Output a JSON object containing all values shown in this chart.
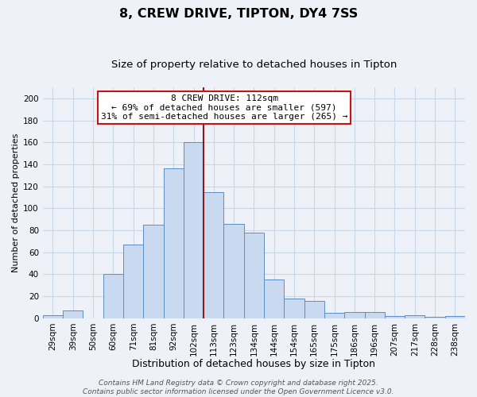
{
  "title": "8, CREW DRIVE, TIPTON, DY4 7SS",
  "subtitle": "Size of property relative to detached houses in Tipton",
  "xlabel": "Distribution of detached houses by size in Tipton",
  "ylabel": "Number of detached properties",
  "categories": [
    "29sqm",
    "39sqm",
    "50sqm",
    "60sqm",
    "71sqm",
    "81sqm",
    "92sqm",
    "102sqm",
    "113sqm",
    "123sqm",
    "134sqm",
    "144sqm",
    "154sqm",
    "165sqm",
    "175sqm",
    "186sqm",
    "196sqm",
    "207sqm",
    "217sqm",
    "228sqm",
    "238sqm"
  ],
  "values": [
    3,
    7,
    0,
    40,
    67,
    85,
    136,
    160,
    115,
    86,
    78,
    35,
    18,
    16,
    5,
    6,
    6,
    2,
    3,
    1,
    2
  ],
  "bar_color": "#c9d9f0",
  "bar_edge_color": "#5b8ec5",
  "vline_color": "#8b1a1a",
  "annotation_title": "8 CREW DRIVE: 112sqm",
  "annotation_line1": "← 69% of detached houses are smaller (597)",
  "annotation_line2": "31% of semi-detached houses are larger (265) →",
  "annotation_box_facecolor": "#ffffff",
  "annotation_box_edgecolor": "#cc1111",
  "ylim": [
    0,
    210
  ],
  "yticks": [
    0,
    20,
    40,
    60,
    80,
    100,
    120,
    140,
    160,
    180,
    200
  ],
  "grid_color": "#c8d8e8",
  "background_color": "#eef2f8",
  "footer_line1": "Contains HM Land Registry data © Crown copyright and database right 2025.",
  "footer_line2": "Contains public sector information licensed under the Open Government Licence v3.0.",
  "title_fontsize": 11.5,
  "subtitle_fontsize": 9.5,
  "xlabel_fontsize": 9,
  "ylabel_fontsize": 8,
  "tick_fontsize": 7.5,
  "annotation_fontsize": 8,
  "footer_fontsize": 6.5
}
